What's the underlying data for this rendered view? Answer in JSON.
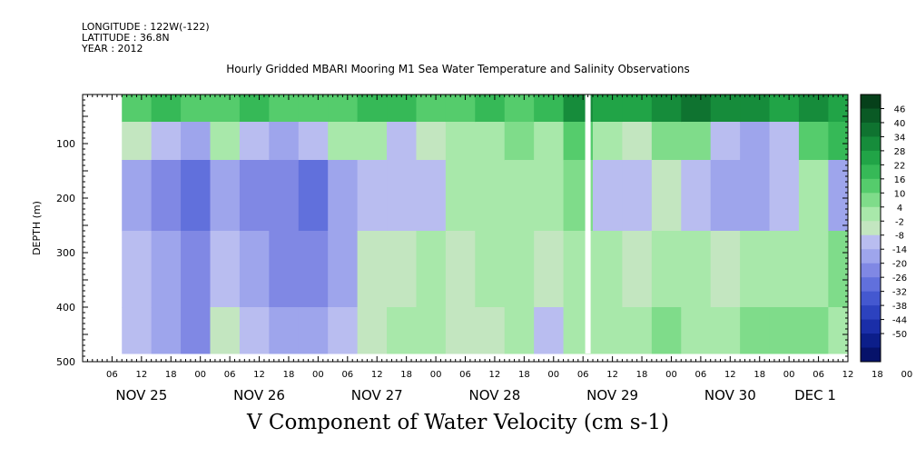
{
  "header": {
    "longitude": "LONGITUDE : 122W(-122)",
    "latitude": "LATITUDE : 36.8N",
    "year": "YEAR : 2012"
  },
  "chart_data": {
    "type": "heatmap",
    "title": "Hourly Gridded MBARI Mooring M1 Sea Water Temperature and Salinity Observations",
    "xlabel": "V Component of Water Velocity (cm s-1)",
    "ylabel": "DEPTH (m)",
    "x_range_hours": [
      0,
      156
    ],
    "ylim": [
      500,
      10
    ],
    "y_ticks": [
      100,
      200,
      300,
      400,
      500
    ],
    "x_hour_ticks": [
      "06",
      "12",
      "18",
      "00",
      "06",
      "12",
      "18",
      "00",
      "06",
      "12",
      "18",
      "00",
      "06",
      "12",
      "18",
      "00",
      "06",
      "12",
      "18",
      "00",
      "06",
      "12",
      "18",
      "00",
      "06",
      "12",
      "18",
      "00",
      "06"
    ],
    "x_date_labels": [
      "NOV 25",
      "NOV 26",
      "NOV 27",
      "NOV 28",
      "NOV 29",
      "NOV 30",
      "DEC 1"
    ],
    "colorbar": {
      "levels": [
        46,
        40,
        34,
        28,
        22,
        16,
        10,
        4,
        -2,
        -8,
        -14,
        -20,
        -26,
        -32,
        -38,
        -44,
        -50
      ],
      "colors": [
        "#06401a",
        "#0a5a25",
        "#0f7330",
        "#168c3b",
        "#21a447",
        "#36b957",
        "#55cc6c",
        "#7fdc8a",
        "#a8e8aa",
        "#c3e6c0",
        "#b9bdf0",
        "#9ea5ec",
        "#8088e4",
        "#6170dc",
        "#4458d0",
        "#2c42bf",
        "#1a2ea8",
        "#0c1e8a",
        "#06126a"
      ]
    },
    "depth_bands_m": [
      {
        "top": 10,
        "bottom": 60
      },
      {
        "top": 60,
        "bottom": 130
      },
      {
        "top": 130,
        "bottom": 260
      },
      {
        "top": 260,
        "bottom": 400
      },
      {
        "top": 400,
        "bottom": 485
      }
    ],
    "profiles": [
      {
        "start_hour": 8,
        "v": [
          20,
          2,
          -12,
          -8,
          -4
        ]
      },
      {
        "start_hour": 14,
        "v": [
          22,
          -6,
          -18,
          -14,
          -10
        ]
      },
      {
        "start_hour": 20,
        "v": [
          18,
          -10,
          -22,
          -20,
          -16
        ]
      },
      {
        "start_hour": 26,
        "v": [
          20,
          4,
          -10,
          -6,
          2
        ]
      },
      {
        "start_hour": 32,
        "v": [
          24,
          -4,
          -16,
          -12,
          -8
        ]
      },
      {
        "start_hour": 38,
        "v": [
          20,
          -14,
          -20,
          -18,
          -14
        ]
      },
      {
        "start_hour": 44,
        "v": [
          16,
          -8,
          -22,
          -20,
          -12
        ]
      },
      {
        "start_hour": 50,
        "v": [
          20,
          6,
          -12,
          -10,
          -4
        ]
      },
      {
        "start_hour": 56,
        "v": [
          24,
          4,
          -4,
          2,
          -2
        ]
      },
      {
        "start_hour": 62,
        "v": [
          22,
          -4,
          -8,
          -2,
          4
        ]
      },
      {
        "start_hour": 68,
        "v": [
          20,
          2,
          -6,
          4,
          8
        ]
      },
      {
        "start_hour": 74,
        "v": [
          18,
          8,
          6,
          2,
          -2
        ]
      },
      {
        "start_hour": 80,
        "v": [
          22,
          6,
          8,
          4,
          2
        ]
      },
      {
        "start_hour": 86,
        "v": [
          20,
          10,
          4,
          8,
          4
        ]
      },
      {
        "start_hour": 92,
        "v": [
          24,
          8,
          6,
          2,
          -4
        ]
      },
      {
        "start_hour": 98,
        "v": [
          36,
          18,
          10,
          6,
          4
        ]
      },
      {
        "start_hour": 104,
        "v": [
          32,
          4,
          -8,
          4,
          6
        ]
      },
      {
        "start_hour": 110,
        "v": [
          30,
          2,
          -4,
          2,
          8
        ]
      },
      {
        "start_hour": 116,
        "v": [
          38,
          10,
          -2,
          6,
          10
        ]
      },
      {
        "start_hour": 122,
        "v": [
          40,
          14,
          -6,
          4,
          8
        ]
      },
      {
        "start_hour": 128,
        "v": [
          36,
          -4,
          -10,
          2,
          4
        ]
      },
      {
        "start_hour": 134,
        "v": [
          34,
          -12,
          -14,
          4,
          10
        ]
      },
      {
        "start_hour": 140,
        "v": [
          30,
          -8,
          -6,
          8,
          12
        ]
      },
      {
        "start_hour": 146,
        "v": [
          34,
          20,
          8,
          6,
          10
        ]
      },
      {
        "start_hour": 152,
        "v": [
          30,
          24,
          -10,
          10,
          8
        ]
      }
    ],
    "data_start_hour": 8,
    "data_end_hour": 156,
    "gap_hour": 103
  }
}
